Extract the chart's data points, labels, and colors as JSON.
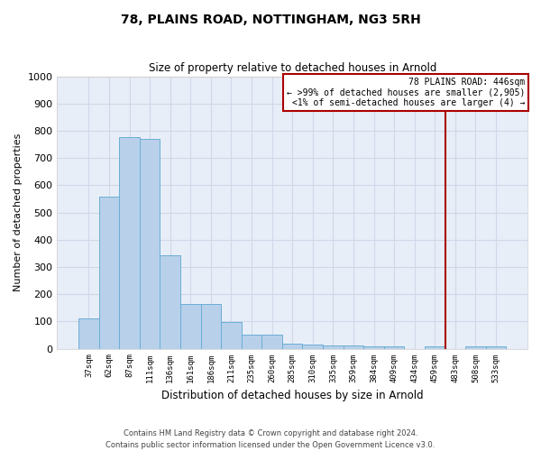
{
  "title": "78, PLAINS ROAD, NOTTINGHAM, NG3 5RH",
  "subtitle": "Size of property relative to detached houses in Arnold",
  "xlabel": "Distribution of detached houses by size in Arnold",
  "ylabel": "Number of detached properties",
  "footer_line1": "Contains HM Land Registry data © Crown copyright and database right 2024.",
  "footer_line2": "Contains public sector information licensed under the Open Government Licence v3.0.",
  "bin_labels": [
    "37sqm",
    "62sqm",
    "87sqm",
    "111sqm",
    "136sqm",
    "161sqm",
    "186sqm",
    "211sqm",
    "235sqm",
    "260sqm",
    "285sqm",
    "310sqm",
    "335sqm",
    "359sqm",
    "384sqm",
    "409sqm",
    "434sqm",
    "459sqm",
    "483sqm",
    "508sqm",
    "533sqm"
  ],
  "bar_values": [
    112,
    558,
    778,
    770,
    343,
    165,
    165,
    98,
    52,
    52,
    18,
    14,
    13,
    13,
    10,
    8,
    0,
    8,
    0,
    8,
    8
  ],
  "bar_color": "#b8d0ea",
  "bar_edge_color": "#6aaed6",
  "background_color": "#e8eef8",
  "grid_color": "#d0d8e8",
  "vline_x": 17.5,
  "vline_color": "#aa0000",
  "annotation_text_line1": "78 PLAINS ROAD: 446sqm",
  "annotation_text_line2": "← >99% of detached houses are smaller (2,905)",
  "annotation_text_line3": "<1% of semi-detached houses are larger (4) →",
  "annotation_box_color": "#aa0000",
  "ylim": [
    0,
    1000
  ],
  "yticks": [
    0,
    100,
    200,
    300,
    400,
    500,
    600,
    700,
    800,
    900,
    1000
  ]
}
